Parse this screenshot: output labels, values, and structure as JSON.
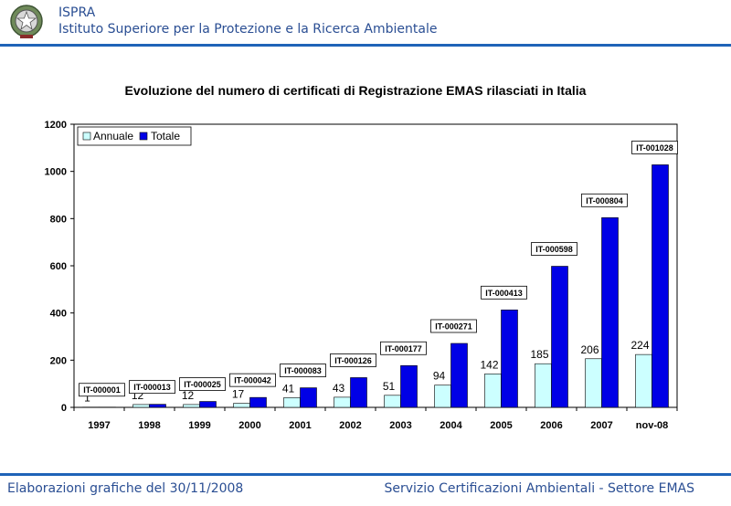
{
  "header": {
    "org_name": "ISPRA",
    "org_full": "Istituto Superiore per la Protezione e la Ricerca Ambientale",
    "emblem_icon": "italian-republic-emblem-icon"
  },
  "footer": {
    "left": "Elaborazioni grafiche del 30/11/2008",
    "right": "Servizio Certificazioni Ambientali - Settore EMAS"
  },
  "colors": {
    "brand": "#2a4e93",
    "rule": "#1f63b8",
    "annual": "#ccffff",
    "total": "#0000e6"
  },
  "chart_data": {
    "type": "bar",
    "title": "Evoluzione del numero di certificati di Registrazione EMAS rilasciati in Italia",
    "categories": [
      "1997",
      "1998",
      "1999",
      "2000",
      "2001",
      "2002",
      "2003",
      "2004",
      "2005",
      "2006",
      "2007",
      "nov-08"
    ],
    "series": [
      {
        "name": "Annuale",
        "values": [
          1,
          12,
          12,
          17,
          41,
          43,
          51,
          94,
          142,
          185,
          206,
          224
        ]
      },
      {
        "name": "Totale",
        "values": [
          1,
          13,
          25,
          42,
          83,
          126,
          177,
          271,
          413,
          598,
          804,
          1028
        ]
      }
    ],
    "annual_labels": [
      "1",
      "12",
      "12",
      "17",
      "41",
      "43",
      "51",
      "94",
      "142",
      "185",
      "206",
      "224"
    ],
    "total_labels": [
      "IT-000001",
      "IT-000013",
      "IT-000025",
      "IT-000042",
      "IT-000083",
      "IT-000126",
      "IT-000177",
      "IT-000271",
      "IT-000413",
      "IT-000598",
      "IT-000804",
      "IT-001028"
    ],
    "y_ticks": [
      "0",
      "200",
      "400",
      "600",
      "800",
      "1000",
      "1200"
    ],
    "ylim": [
      0,
      1200
    ],
    "legend_position": "top-left",
    "grid": false
  }
}
